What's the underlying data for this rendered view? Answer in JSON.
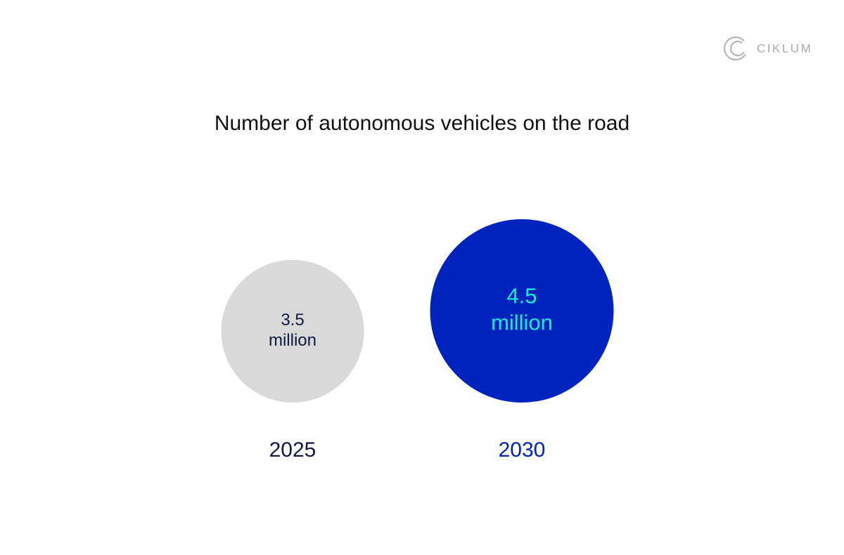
{
  "logo": {
    "text": "CIKLUM"
  },
  "chart_data": {
    "type": "bubble",
    "title": "Number of autonomous vehicles on the road",
    "categories": [
      "2025",
      "2030"
    ],
    "values": [
      3.5,
      4.5
    ],
    "value_labels": [
      "3.5 million",
      "4.5 million"
    ],
    "colors": [
      "#d9d9d9",
      "#0023be"
    ]
  }
}
